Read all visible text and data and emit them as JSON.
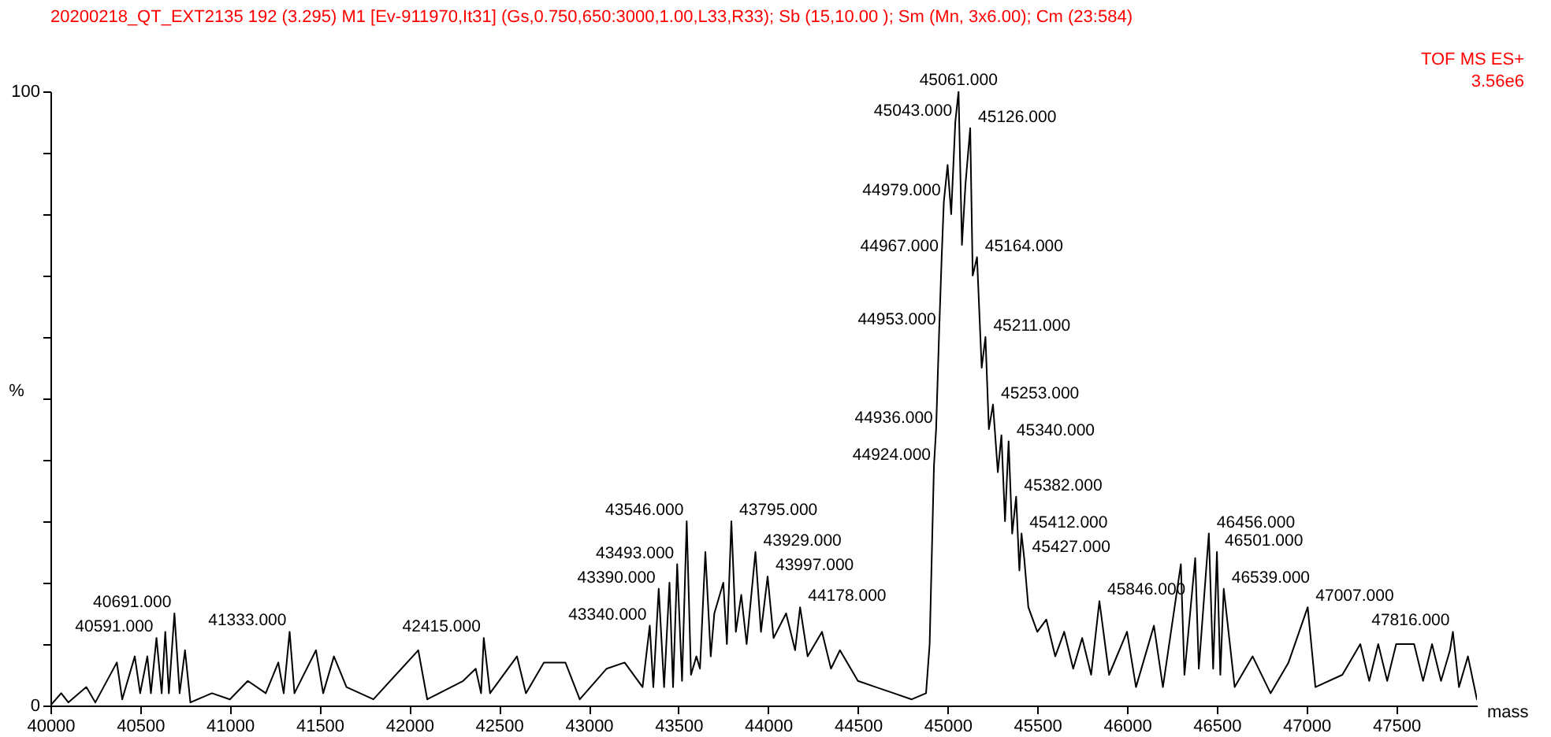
{
  "chart_data": {
    "type": "line",
    "title": "20200218_QT_EXT2135  192 (3.295) M1 [Ev-911970,It31] (Gs,0.750,650:3000,1.00,L33,R33); Sb (15,10.00 ); Sm (Mn, 3x6.00); Cm (23:584)",
    "xlabel": "mass",
    "ylabel": "%",
    "xlim": [
      40000,
      47950
    ],
    "xticks": [
      40000,
      40500,
      41000,
      41500,
      42000,
      42500,
      43000,
      43500,
      44000,
      44500,
      45000,
      45500,
      46000,
      46500,
      47000,
      47500
    ],
    "ylim": [
      0,
      100
    ],
    "yticks": [
      0,
      {
        "value": 10,
        "label": null
      },
      {
        "value": 20,
        "label": null
      },
      {
        "value": 30,
        "label": null
      },
      {
        "value": 40,
        "label": null
      },
      {
        "value": 50,
        "label": null
      },
      {
        "value": 60,
        "label": null
      },
      {
        "value": 70,
        "label": null
      },
      {
        "value": 80,
        "label": null
      },
      {
        "value": 90,
        "label": null
      },
      100
    ],
    "grid": false,
    "marker": "none",
    "line_style": "solid",
    "series": [
      {
        "color": "#000000",
        "x": [
          40000,
          40060,
          40100,
          40200,
          40250,
          40370,
          40400,
          40470,
          40500,
          40540,
          40560,
          40591,
          40620,
          40640,
          40660,
          40691,
          40720,
          40750,
          40780,
          40900,
          41000,
          41100,
          41200,
          41270,
          41300,
          41333,
          41360,
          41480,
          41520,
          41580,
          41650,
          41800,
          42050,
          42100,
          42300,
          42370,
          42400,
          42415,
          42450,
          42600,
          42650,
          42750,
          42870,
          42950,
          43100,
          43200,
          43300,
          43340,
          43360,
          43390,
          43420,
          43450,
          43470,
          43493,
          43520,
          43546,
          43570,
          43600,
          43620,
          43650,
          43680,
          43700,
          43750,
          43770,
          43795,
          43820,
          43850,
          43880,
          43929,
          43960,
          43997,
          44030,
          44100,
          44150,
          44178,
          44220,
          44300,
          44350,
          44400,
          44500,
          44600,
          44700,
          44800,
          44880,
          44900,
          44924,
          44936,
          44953,
          44967,
          44979,
          45000,
          45020,
          45043,
          45061,
          45080,
          45100,
          45126,
          45140,
          45164,
          45190,
          45211,
          45230,
          45253,
          45280,
          45300,
          45320,
          45340,
          45360,
          45382,
          45400,
          45412,
          45427,
          45450,
          45500,
          45550,
          45600,
          45650,
          45700,
          45750,
          45800,
          45846,
          45900,
          46000,
          46050,
          46150,
          46200,
          46300,
          46320,
          46380,
          46400,
          46456,
          46480,
          46501,
          46520,
          46539,
          46600,
          46700,
          46800,
          46900,
          47007,
          47050,
          47200,
          47300,
          47350,
          47400,
          47450,
          47500,
          47600,
          47650,
          47700,
          47750,
          47800,
          47816,
          47850,
          47900,
          47950
        ],
        "values": [
          0,
          2,
          0.5,
          3,
          0.5,
          7,
          1,
          8,
          2,
          8,
          2,
          11,
          2,
          12,
          2,
          15,
          2,
          9,
          0.5,
          2,
          1,
          4,
          2,
          7,
          2,
          12,
          2,
          9,
          2,
          8,
          3,
          1,
          9,
          1,
          4,
          6,
          2,
          11,
          2,
          8,
          2,
          7,
          7,
          1,
          6,
          7,
          3,
          13,
          3,
          19,
          3,
          20,
          3,
          23,
          4,
          30,
          5,
          8,
          6,
          25,
          8,
          15,
          20,
          10,
          30,
          12,
          18,
          10,
          25,
          12,
          21,
          11,
          15,
          9,
          16,
          8,
          12,
          6,
          9,
          4,
          3,
          2,
          1,
          2,
          10,
          39,
          45,
          61,
          73,
          82,
          88,
          80,
          95,
          100,
          75,
          85,
          94,
          70,
          73,
          55,
          60,
          45,
          49,
          38,
          44,
          30,
          43,
          28,
          34,
          22,
          28,
          24,
          16,
          12,
          14,
          8,
          12,
          6,
          11,
          5,
          17,
          5,
          12,
          3,
          13,
          3,
          23,
          5,
          24,
          6,
          28,
          6,
          25,
          5,
          19,
          3,
          8,
          2,
          7,
          16,
          3,
          5,
          10,
          4,
          10,
          4,
          10,
          10,
          4,
          10,
          4,
          9,
          12,
          3,
          8,
          1
        ]
      }
    ],
    "annotations": [
      "TOF MS ES+",
      "3.56e6",
      {
        "text": "40591.000",
        "x": 40591,
        "y": 11
      },
      {
        "text": "40691.000",
        "x": 40691,
        "y": 15
      },
      {
        "text": "41333.000",
        "x": 41333,
        "y": 12
      },
      {
        "text": "42415.000",
        "x": 42415,
        "y": 11
      },
      {
        "text": "43340.000",
        "x": 43340,
        "y": 13
      },
      {
        "text": "43390.000",
        "x": 43390,
        "y": 19
      },
      {
        "text": "43493.000",
        "x": 43493,
        "y": 23
      },
      {
        "text": "43546.000",
        "x": 43546,
        "y": 30
      },
      {
        "text": "43795.000",
        "x": 43795,
        "y": 30
      },
      {
        "text": "43929.000",
        "x": 43929,
        "y": 25
      },
      {
        "text": "43997.000",
        "x": 43997,
        "y": 21
      },
      {
        "text": "44178.000",
        "x": 44178,
        "y": 16
      },
      {
        "text": "44924.000",
        "x": 44924,
        "y": 39
      },
      {
        "text": "44936.000",
        "x": 44936,
        "y": 45
      },
      {
        "text": "44953.000",
        "x": 44953,
        "y": 61
      },
      {
        "text": "44967.000",
        "x": 44967,
        "y": 73
      },
      {
        "text": "44979.000",
        "x": 44979,
        "y": 82
      },
      {
        "text": "45043.000",
        "x": 45043,
        "y": 95
      },
      {
        "text": "45061.000",
        "x": 45061,
        "y": 100
      },
      {
        "text": "45126.000",
        "x": 45126,
        "y": 94
      },
      {
        "text": "45164.000",
        "x": 45164,
        "y": 73
      },
      {
        "text": "45211.000",
        "x": 45211,
        "y": 60
      },
      {
        "text": "45253.000",
        "x": 45253,
        "y": 49
      },
      {
        "text": "45340.000",
        "x": 45340,
        "y": 43
      },
      {
        "text": "45382.000",
        "x": 45382,
        "y": 34
      },
      {
        "text": "45412.000",
        "x": 45412,
        "y": 28
      },
      {
        "text": "45427.000",
        "x": 45427,
        "y": 24
      },
      {
        "text": "45846.000",
        "x": 45846,
        "y": 17
      },
      {
        "text": "46456.000",
        "x": 46456,
        "y": 28
      },
      {
        "text": "46501.000",
        "x": 46501,
        "y": 25
      },
      {
        "text": "46539.000",
        "x": 46539,
        "y": 19
      },
      {
        "text": "47007.000",
        "x": 47007,
        "y": 16
      },
      {
        "text": "47816.000",
        "x": 47816,
        "y": 12
      }
    ]
  }
}
